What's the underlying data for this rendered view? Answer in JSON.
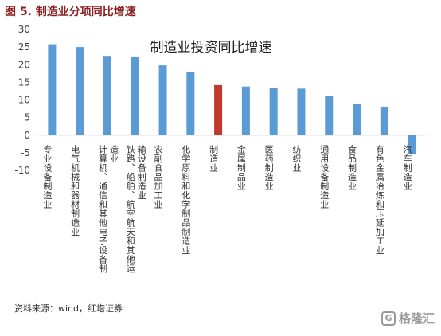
{
  "figure": {
    "title": "图 5. 制造业分项同比增速",
    "source": "资料来源：wind，红塔证券",
    "watermark": "格隆汇",
    "watermark_icon": "G"
  },
  "colors": {
    "bar": "#5b9bd5",
    "highlight": "#c0392b",
    "header_accent": "#8a1f1f"
  },
  "chart_data": {
    "type": "bar",
    "title": "制造业投资同比增速",
    "xlabel": "",
    "ylabel": "",
    "ylim": [
      -10,
      30
    ],
    "yticks": [
      -10,
      -5,
      0,
      5,
      10,
      15,
      20,
      25,
      30
    ],
    "grid": false,
    "legend": "none",
    "categories": [
      "专业设备制造业",
      "电气机械和器材制造业",
      "计算机、通信和其他电子设备制造业",
      "铁路、船舶、航空航天和其他运输设备制造业",
      "农副食品加工业",
      "化学原料和化学制品制造业",
      "制造业",
      "金属制品业",
      "医药制造业",
      "纺织业",
      "通用设备制造业",
      "食品制造业",
      "有色金属冶炼和压延加工业",
      "汽车制造业"
    ],
    "label_lines": [
      [
        "专业设备制造业"
      ],
      [
        "电气机械和器材制造业"
      ],
      [
        "计算机、通信和其他电子设备制",
        "造业"
      ],
      [
        "铁路、船舶、航空航天和其他运",
        "输设备制造业"
      ],
      [
        "农副食品加工业"
      ],
      [
        "化学原料和化学制品制造业"
      ],
      [
        "制造业"
      ],
      [
        "金属制品业"
      ],
      [
        "医药制造业"
      ],
      [
        "纺织业"
      ],
      [
        "通用设备制造业"
      ],
      [
        "食品制造业"
      ],
      [
        "有色金属冶炼和压延加工业"
      ],
      [
        "汽车制造业"
      ]
    ],
    "values": [
      25.8,
      25.0,
      22.5,
      22.2,
      19.8,
      17.8,
      14.2,
      13.8,
      13.3,
      13.2,
      11.1,
      8.8,
      7.9,
      -5.5
    ],
    "highlight_category": "制造业"
  }
}
